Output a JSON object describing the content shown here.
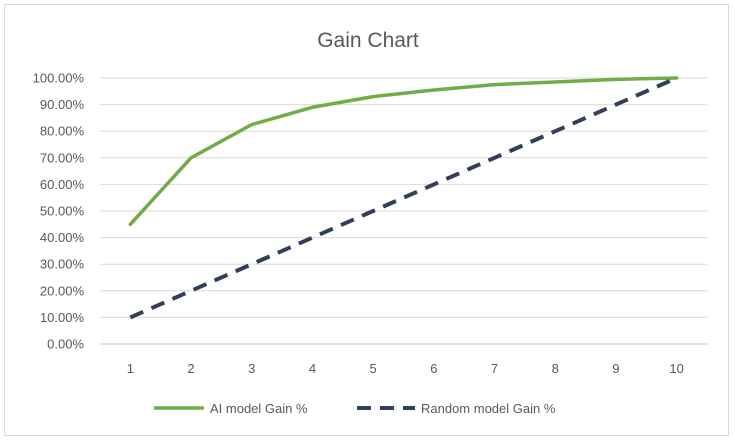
{
  "chart_data": {
    "type": "line",
    "title": "Gain Chart",
    "xlabel": "",
    "ylabel": "",
    "categories": [
      1,
      2,
      3,
      4,
      5,
      6,
      7,
      8,
      9,
      10
    ],
    "series": [
      {
        "name": "AI model Gain %",
        "values": [
          0.45,
          0.7,
          0.825,
          0.89,
          0.93,
          0.955,
          0.975,
          0.985,
          0.995,
          1.0
        ],
        "color": "#70ad47",
        "style": "solid"
      },
      {
        "name": "Random model Gain %",
        "values": [
          0.1,
          0.2,
          0.3,
          0.4,
          0.5,
          0.6,
          0.7,
          0.8,
          0.9,
          1.0
        ],
        "color": "#323f5a",
        "style": "dashed"
      }
    ],
    "ylim": [
      0,
      1
    ],
    "yticks": [
      "0.00%",
      "10.00%",
      "20.00%",
      "30.00%",
      "40.00%",
      "50.00%",
      "60.00%",
      "70.00%",
      "80.00%",
      "90.00%",
      "100.00%"
    ],
    "grid": true,
    "legend": "bottom"
  }
}
